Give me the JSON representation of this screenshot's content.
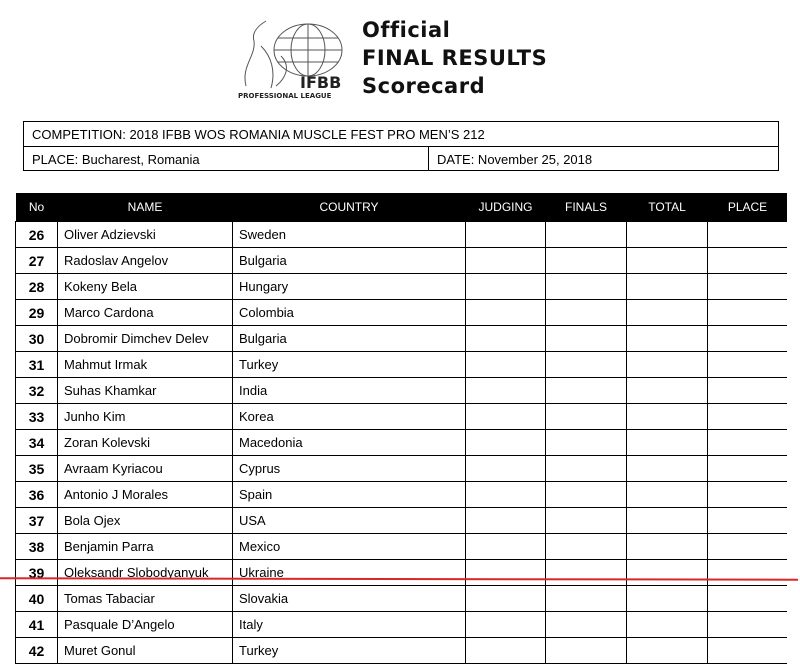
{
  "header": {
    "logo_text": "IFBB",
    "logo_subtext": "PROFESSIONAL LEAGUE",
    "title_lines": [
      "Official",
      "FINAL RESULTS",
      "Scorecard"
    ]
  },
  "info": {
    "competition": "COMPETITION:  2018 IFBB WOS ROMANIA MUSCLE FEST PRO MEN’S 212",
    "place": "PLACE:  Bucharest, Romania",
    "date": "DATE:   November 25, 2018"
  },
  "table": {
    "columns": [
      "No",
      "NAME",
      "COUNTRY",
      "JUDGING",
      "FINALS",
      "TOTAL",
      "PLACE"
    ],
    "rows": [
      {
        "no": "26",
        "name": "Oliver Adzievski",
        "country": "Sweden"
      },
      {
        "no": "27",
        "name": "Radoslav Angelov",
        "country": "Bulgaria"
      },
      {
        "no": "28",
        "name": "Kokeny Bela",
        "country": "Hungary"
      },
      {
        "no": "29",
        "name": "Marco Cardona",
        "country": "Colombia"
      },
      {
        "no": "30",
        "name": "Dobromir Dimchev Delev",
        "country": "Bulgaria"
      },
      {
        "no": "31",
        "name": "Mahmut Irmak",
        "country": "Turkey"
      },
      {
        "no": "32",
        "name": "Suhas Khamkar",
        "country": "India"
      },
      {
        "no": "33",
        "name": "Junho Kim",
        "country": "Korea"
      },
      {
        "no": "34",
        "name": "Zoran Kolevski",
        "country": "Macedonia"
      },
      {
        "no": "35",
        "name": "Avraam Kyriacou",
        "country": "Cyprus"
      },
      {
        "no": "36",
        "name": "Antonio J Morales",
        "country": "Spain"
      },
      {
        "no": "37",
        "name": "Bola Ojex",
        "country": "USA"
      },
      {
        "no": "38",
        "name": "Benjamin Parra",
        "country": "Mexico"
      },
      {
        "no": "39",
        "name": "Oleksandr Slobodyanyuk",
        "country": "Ukraine"
      },
      {
        "no": "40",
        "name": "Tomas Tabaciar",
        "country": "Slovakia"
      },
      {
        "no": "41",
        "name": "Pasquale D’Angelo",
        "country": "Italy"
      },
      {
        "no": "42",
        "name": "Muret Gonul",
        "country": "Turkey"
      },
      {
        "no": "",
        "name": "",
        "country": ""
      }
    ]
  },
  "colors": {
    "cutline": "#d9262b",
    "header_bg": "#000000"
  }
}
